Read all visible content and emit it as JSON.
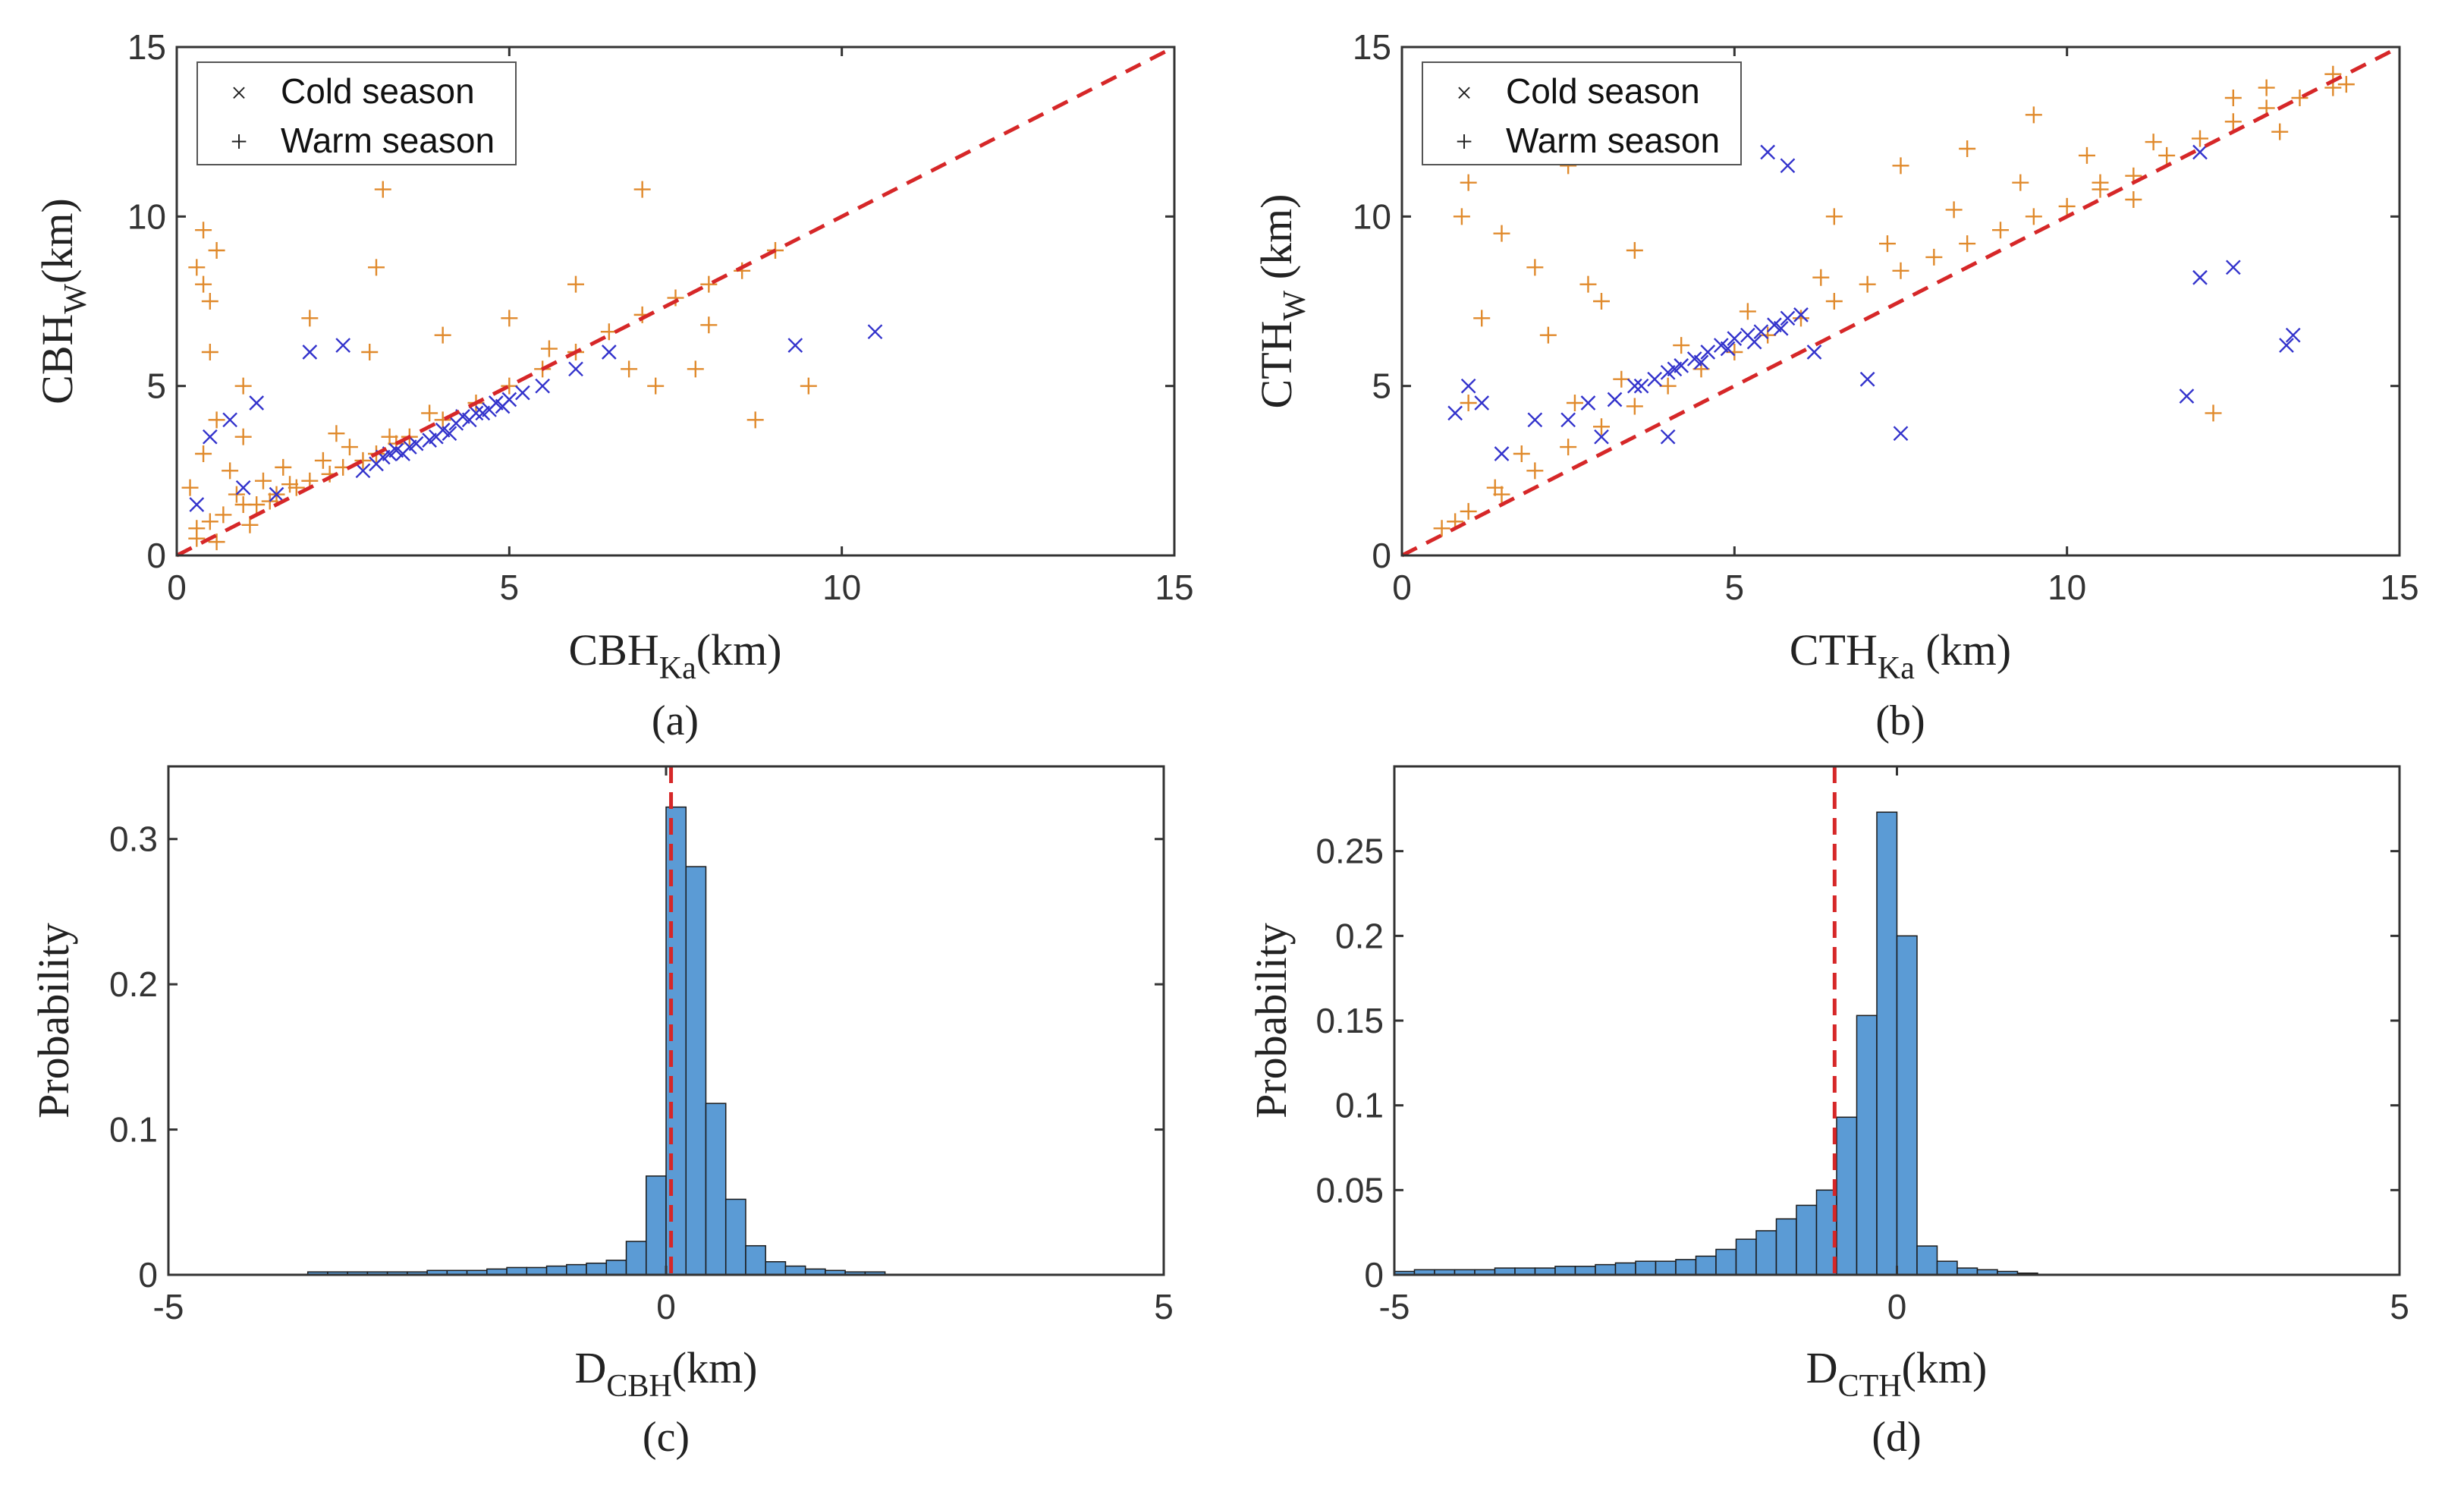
{
  "colors": {
    "cold": "#3333cc",
    "warm": "#e08a2c",
    "refline": "#d62728",
    "bar": "#5b9bd5",
    "barEdge": "#1a1a1a",
    "axis": "#333333"
  },
  "chart_data": [
    {
      "id": "a",
      "type": "scatter",
      "panel_label": "(a)",
      "xlabel": {
        "main": "CBH",
        "sub": "Ka",
        "unit": "(km)"
      },
      "ylabel": {
        "main": "CBH",
        "sub": "W",
        "unit": "(km)"
      },
      "xlim": [
        0,
        15
      ],
      "ylim": [
        0,
        15
      ],
      "xticks": [
        0,
        5,
        10,
        15
      ],
      "yticks": [
        0,
        5,
        10,
        15
      ],
      "legend": [
        "Cold season",
        "Warm season"
      ],
      "legend_position": "top-left",
      "reference_line": "1:1 dashed",
      "series": [
        {
          "name": "Cold season",
          "marker": "x",
          "x": [
            3.2,
            3.5,
            3.8,
            4.0,
            4.2,
            4.4,
            4.6,
            4.8,
            5.0,
            3.0,
            3.3,
            3.6,
            4.1,
            4.3,
            4.7,
            2.8,
            3.1,
            3.9,
            4.5,
            5.2,
            5.5,
            6.0,
            6.5,
            0.5,
            0.8,
            1.2,
            2.0,
            2.5,
            9.3,
            10.5,
            0.3,
            1.0,
            1.5,
            3.4,
            4.9
          ],
          "y": [
            3.0,
            3.2,
            3.4,
            3.7,
            3.9,
            4.0,
            4.2,
            4.5,
            4.6,
            2.7,
            3.1,
            3.3,
            3.6,
            4.1,
            4.3,
            2.5,
            2.9,
            3.5,
            4.2,
            4.8,
            5.0,
            5.5,
            6.0,
            3.5,
            4.0,
            4.5,
            6.0,
            6.2,
            6.2,
            6.6,
            1.5,
            2.0,
            1.8,
            3.0,
            4.4
          ]
        },
        {
          "name": "Warm season",
          "marker": "+",
          "x": [
            0.3,
            0.4,
            0.5,
            0.6,
            0.3,
            0.5,
            0.7,
            1.0,
            1.2,
            1.5,
            1.8,
            2.0,
            2.3,
            2.5,
            2.8,
            3.0,
            3.3,
            3.5,
            4.0,
            4.5,
            5.0,
            5.5,
            6.0,
            6.5,
            7.0,
            7.5,
            8.0,
            8.5,
            9.0,
            0.2,
            0.4,
            0.6,
            0.8,
            1.0,
            1.3,
            1.6,
            2.2,
            2.6,
            3.2,
            3.8,
            0.5,
            1.0,
            2.0,
            3.0,
            4.0,
            5.0,
            6.0,
            7.0,
            8.0,
            0.3,
            0.6,
            0.9,
            1.1,
            1.4,
            1.7,
            3.1,
            2.9,
            6.8,
            7.2,
            9.5,
            0.4,
            2.4,
            5.6,
            7.8,
            8.7
          ],
          "y": [
            8.5,
            8.0,
            7.5,
            9.0,
            0.5,
            1.0,
            1.2,
            1.5,
            1.5,
            1.8,
            2.0,
            2.2,
            2.4,
            2.6,
            2.8,
            3.0,
            3.3,
            3.5,
            4.0,
            4.5,
            5.0,
            5.5,
            6.0,
            6.6,
            7.1,
            7.6,
            8.0,
            8.4,
            9.0,
            2.0,
            3.0,
            4.0,
            2.5,
            3.5,
            2.2,
            2.6,
            2.8,
            3.2,
            3.5,
            4.2,
            6.0,
            5.0,
            7.0,
            8.5,
            6.5,
            7.0,
            8.0,
            10.8,
            6.8,
            0.8,
            0.4,
            1.8,
            0.9,
            1.6,
            2.1,
            10.8,
            6.0,
            5.5,
            5.0,
            5.0,
            9.6,
            3.6,
            6.1,
            5.5,
            4.0
          ]
        }
      ]
    },
    {
      "id": "b",
      "type": "scatter",
      "panel_label": "(b)",
      "xlabel": {
        "main": "CTH",
        "sub": "Ka",
        "unit": " (km)"
      },
      "ylabel": {
        "main": "CTH",
        "sub": "W",
        "unit": " (km)"
      },
      "xlim": [
        0,
        15
      ],
      "ylim": [
        0,
        15
      ],
      "xticks": [
        0,
        5,
        10,
        15
      ],
      "yticks": [
        0,
        5,
        10,
        15
      ],
      "legend": [
        "Cold season",
        "Warm season"
      ],
      "legend_position": "top-left",
      "reference_line": "1:1 dashed",
      "series": [
        {
          "name": "Cold season",
          "marker": "x",
          "x": [
            3.5,
            3.8,
            4.0,
            4.2,
            4.4,
            4.6,
            4.8,
            5.0,
            5.2,
            5.4,
            5.6,
            5.8,
            6.0,
            3.2,
            3.6,
            4.1,
            4.5,
            4.9,
            5.3,
            5.7,
            2.5,
            2.8,
            3.0,
            1.0,
            0.8,
            1.2,
            1.5,
            2.0,
            5.5,
            6.2,
            7.0,
            7.5,
            12.0,
            12.5,
            13.3,
            13.4,
            11.8,
            12.0,
            5.8,
            4.0
          ],
          "y": [
            5.0,
            5.2,
            5.4,
            5.6,
            5.8,
            6.0,
            6.2,
            6.4,
            6.5,
            6.6,
            6.8,
            7.0,
            7.1,
            4.6,
            5.0,
            5.5,
            5.7,
            6.1,
            6.3,
            6.7,
            4.0,
            4.5,
            3.5,
            5.0,
            4.2,
            4.5,
            3.0,
            4.0,
            11.9,
            6.0,
            5.2,
            3.6,
            11.9,
            8.5,
            6.2,
            6.5,
            4.7,
            8.2,
            11.5,
            3.5
          ]
        },
        {
          "name": "Warm season",
          "marker": "+",
          "x": [
            0.6,
            0.8,
            1.0,
            1.5,
            2.0,
            2.5,
            3.0,
            3.5,
            4.0,
            4.5,
            5.0,
            5.5,
            6.0,
            6.5,
            7.0,
            7.5,
            8.0,
            8.5,
            9.0,
            9.5,
            10.0,
            10.5,
            11.0,
            11.5,
            12.0,
            12.5,
            13.0,
            13.5,
            14.0,
            14.2,
            0.9,
            1.0,
            1.5,
            2.0,
            2.5,
            3.0,
            3.5,
            1.0,
            1.2,
            2.2,
            2.8,
            6.5,
            7.5,
            8.5,
            9.5,
            10.5,
            11.0,
            12.5,
            13.0,
            14.0,
            1.4,
            1.8,
            2.6,
            3.3,
            4.2,
            5.2,
            6.3,
            7.3,
            8.3,
            9.3,
            10.3,
            11.3,
            12.2,
            13.2
          ],
          "y": [
            0.8,
            1.0,
            1.3,
            1.8,
            2.5,
            3.2,
            3.8,
            4.4,
            5.0,
            5.5,
            6.0,
            6.5,
            7.0,
            7.5,
            8.0,
            8.4,
            8.8,
            9.2,
            9.6,
            10.0,
            10.3,
            10.8,
            11.2,
            11.8,
            12.3,
            12.8,
            13.2,
            13.5,
            13.8,
            13.9,
            10.0,
            11.0,
            9.5,
            8.5,
            11.5,
            7.5,
            9.0,
            4.5,
            7.0,
            6.5,
            8.0,
            10.0,
            11.5,
            12.0,
            13.0,
            11.0,
            10.5,
            13.5,
            13.8,
            14.2,
            2.0,
            3.0,
            4.5,
            5.2,
            6.2,
            7.2,
            8.2,
            9.2,
            10.2,
            11.0,
            11.8,
            12.2,
            4.2,
            12.5
          ]
        }
      ]
    },
    {
      "id": "c",
      "type": "bar",
      "panel_label": "(c)",
      "xlabel": {
        "main": "D",
        "sub": "CBH",
        "unit": "(km)"
      },
      "ylabel": {
        "main": "Probability",
        "sub": "",
        "unit": ""
      },
      "xlim": [
        -5,
        5
      ],
      "ylim": [
        0,
        0.35
      ],
      "xticks": [
        -5,
        0,
        5
      ],
      "yticks": [
        0,
        0.1,
        0.2,
        0.3
      ],
      "ytick_labels": [
        "0",
        "0.1",
        "0.2",
        "0.3"
      ],
      "bin_width": 0.2,
      "bin_starts": [
        -3.6,
        -3.4,
        -3.2,
        -3.0,
        -2.8,
        -2.6,
        -2.4,
        -2.2,
        -2.0,
        -1.8,
        -1.6,
        -1.4,
        -1.2,
        -1.0,
        -0.8,
        -0.6,
        -0.4,
        -0.2,
        0.0,
        0.2,
        0.4,
        0.6,
        0.8,
        1.0,
        1.2,
        1.4,
        1.6,
        1.8,
        2.0
      ],
      "values": [
        0.002,
        0.002,
        0.002,
        0.002,
        0.002,
        0.002,
        0.003,
        0.003,
        0.003,
        0.004,
        0.005,
        0.005,
        0.006,
        0.007,
        0.008,
        0.01,
        0.023,
        0.068,
        0.322,
        0.281,
        0.118,
        0.052,
        0.02,
        0.009,
        0.006,
        0.004,
        0.003,
        0.002,
        0.002
      ],
      "reference_line_x": 0.05
    },
    {
      "id": "d",
      "type": "bar",
      "panel_label": "(d)",
      "xlabel": {
        "main": "D",
        "sub": "CTH",
        "unit": "(km)"
      },
      "ylabel": {
        "main": "Probability",
        "sub": "",
        "unit": ""
      },
      "xlim": [
        -5,
        5
      ],
      "ylim": [
        0,
        0.3
      ],
      "xticks": [
        -5,
        0,
        5
      ],
      "yticks": [
        0,
        0.05,
        0.1,
        0.15,
        0.2,
        0.25
      ],
      "ytick_labels": [
        "0",
        "0.05",
        "0.1",
        "0.15",
        "0.2",
        "0.25"
      ],
      "bin_width": 0.2,
      "bin_starts": [
        -5.0,
        -4.8,
        -4.6,
        -4.4,
        -4.2,
        -4.0,
        -3.8,
        -3.6,
        -3.4,
        -3.2,
        -3.0,
        -2.8,
        -2.6,
        -2.4,
        -2.2,
        -2.0,
        -1.8,
        -1.6,
        -1.4,
        -1.2,
        -1.0,
        -0.8,
        -0.6,
        -0.4,
        -0.2,
        0.0,
        0.2,
        0.4,
        0.6,
        0.8,
        1.0,
        1.2
      ],
      "values": [
        0.002,
        0.003,
        0.003,
        0.003,
        0.003,
        0.004,
        0.004,
        0.004,
        0.005,
        0.005,
        0.006,
        0.007,
        0.008,
        0.008,
        0.009,
        0.011,
        0.015,
        0.021,
        0.026,
        0.033,
        0.041,
        0.05,
        0.093,
        0.153,
        0.273,
        0.2,
        0.017,
        0.008,
        0.004,
        0.003,
        0.002,
        0.001
      ],
      "reference_line_x": -0.62
    }
  ]
}
